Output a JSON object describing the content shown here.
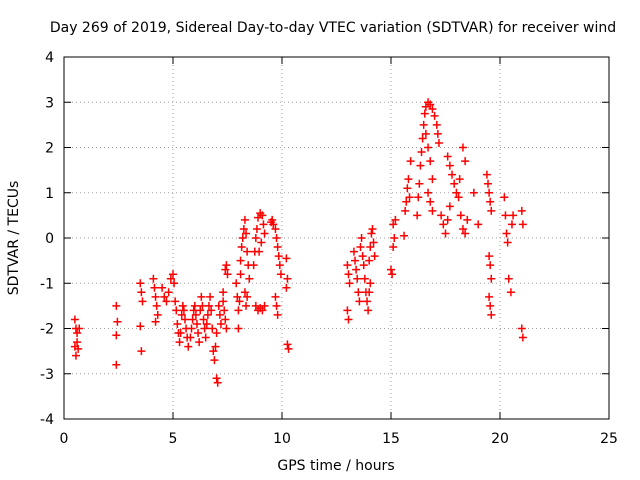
{
  "chart_data": {
    "type": "scatter",
    "title": "Day 269 of 2019, Sidereal Day-to-day VTEC variation (SDTVAR) for receiver wind",
    "xlabel": "GPS time / hours",
    "ylabel": "SDTVAR / TECUs",
    "xlim": [
      0,
      25
    ],
    "ylim": [
      -4,
      4
    ],
    "xticks": [
      0,
      5,
      10,
      15,
      20,
      25
    ],
    "yticks": [
      -4,
      -3,
      -2,
      -1,
      0,
      1,
      2,
      3,
      4
    ],
    "grid": true,
    "marker": "+",
    "marker_color": "#ff0000",
    "series": [
      {
        "name": "SDTVAR",
        "points": [
          [
            0.5,
            -1.8
          ],
          [
            0.55,
            -2.0
          ],
          [
            0.5,
            -2.4
          ],
          [
            0.55,
            -2.6
          ],
          [
            0.6,
            -2.1
          ],
          [
            0.7,
            -2.0
          ],
          [
            0.6,
            -2.3
          ],
          [
            0.65,
            -2.45
          ],
          [
            2.4,
            -1.5
          ],
          [
            2.45,
            -1.85
          ],
          [
            2.4,
            -2.15
          ],
          [
            2.4,
            -2.8
          ],
          [
            3.5,
            -1.0
          ],
          [
            3.55,
            -1.2
          ],
          [
            3.6,
            -1.4
          ],
          [
            3.5,
            -1.95
          ],
          [
            3.55,
            -2.5
          ],
          [
            4.1,
            -0.9
          ],
          [
            4.15,
            -1.1
          ],
          [
            4.2,
            -1.3
          ],
          [
            4.25,
            -1.5
          ],
          [
            4.3,
            -1.7
          ],
          [
            4.2,
            -1.85
          ],
          [
            4.5,
            -1.1
          ],
          [
            4.6,
            -1.3
          ],
          [
            4.7,
            -1.4
          ],
          [
            4.8,
            -1.2
          ],
          [
            4.9,
            -0.9
          ],
          [
            5.0,
            -0.8
          ],
          [
            5.05,
            -1.0
          ],
          [
            5.1,
            -1.4
          ],
          [
            5.15,
            -1.6
          ],
          [
            5.2,
            -1.9
          ],
          [
            5.25,
            -2.1
          ],
          [
            5.3,
            -2.3
          ],
          [
            5.35,
            -2.1
          ],
          [
            5.4,
            -1.7
          ],
          [
            5.45,
            -1.5
          ],
          [
            5.5,
            -1.6
          ],
          [
            5.55,
            -1.8
          ],
          [
            5.6,
            -2.0
          ],
          [
            5.65,
            -2.2
          ],
          [
            5.7,
            -2.4
          ],
          [
            5.8,
            -2.2
          ],
          [
            5.85,
            -2.0
          ],
          [
            5.9,
            -1.8
          ],
          [
            5.95,
            -1.6
          ],
          [
            6.0,
            -1.5
          ],
          [
            6.05,
            -1.7
          ],
          [
            6.1,
            -1.9
          ],
          [
            6.15,
            -2.1
          ],
          [
            6.2,
            -2.3
          ],
          [
            6.25,
            -1.6
          ],
          [
            6.3,
            -1.3
          ],
          [
            6.35,
            -1.5
          ],
          [
            6.4,
            -1.8
          ],
          [
            6.45,
            -2.0
          ],
          [
            6.5,
            -2.2
          ],
          [
            6.55,
            -1.9
          ],
          [
            6.6,
            -1.7
          ],
          [
            6.65,
            -1.5
          ],
          [
            6.7,
            -1.3
          ],
          [
            6.75,
            -1.6
          ],
          [
            6.8,
            -2.0
          ],
          [
            6.85,
            -2.5
          ],
          [
            6.9,
            -2.7
          ],
          [
            6.95,
            -2.4
          ],
          [
            7.0,
            -2.1
          ],
          [
            7.0,
            -3.1
          ],
          [
            7.05,
            -3.2
          ],
          [
            7.1,
            -1.5
          ],
          [
            7.15,
            -1.7
          ],
          [
            7.2,
            -1.9
          ],
          [
            7.3,
            -1.4
          ],
          [
            7.35,
            -1.6
          ],
          [
            7.4,
            -1.8
          ],
          [
            7.45,
            -2.0
          ],
          [
            7.4,
            -0.7
          ],
          [
            7.45,
            -0.6
          ],
          [
            7.5,
            -0.8
          ],
          [
            7.3,
            -1.2
          ],
          [
            7.9,
            -1.0
          ],
          [
            7.95,
            -1.3
          ],
          [
            8.0,
            -1.6
          ],
          [
            8.0,
            -2.0
          ],
          [
            8.05,
            -1.4
          ],
          [
            8.1,
            -0.8
          ],
          [
            8.1,
            -0.5
          ],
          [
            8.15,
            -0.2
          ],
          [
            8.2,
            0.0
          ],
          [
            8.25,
            0.2
          ],
          [
            8.3,
            0.4
          ],
          [
            8.35,
            0.1
          ],
          [
            8.4,
            -0.3
          ],
          [
            8.45,
            -0.6
          ],
          [
            8.5,
            -0.9
          ],
          [
            8.4,
            -1.3
          ],
          [
            8.35,
            -1.5
          ],
          [
            8.3,
            -1.2
          ],
          [
            8.7,
            -0.6
          ],
          [
            8.75,
            -0.3
          ],
          [
            8.8,
            0.0
          ],
          [
            8.85,
            0.2
          ],
          [
            8.9,
            0.45
          ],
          [
            9.0,
            0.55
          ],
          [
            9.1,
            0.5
          ],
          [
            9.15,
            0.3
          ],
          [
            9.2,
            0.1
          ],
          [
            9.05,
            -0.1
          ],
          [
            8.95,
            -0.3
          ],
          [
            8.8,
            -1.5
          ],
          [
            8.9,
            -1.6
          ],
          [
            9.0,
            -1.55
          ],
          [
            9.1,
            -1.6
          ],
          [
            9.2,
            -1.5
          ],
          [
            9.5,
            0.35
          ],
          [
            9.55,
            0.4
          ],
          [
            9.6,
            0.3
          ],
          [
            9.7,
            0.2
          ],
          [
            9.75,
            0.0
          ],
          [
            9.8,
            -0.2
          ],
          [
            9.85,
            -0.4
          ],
          [
            9.9,
            -0.6
          ],
          [
            9.95,
            -0.8
          ],
          [
            9.7,
            -1.3
          ],
          [
            9.75,
            -1.5
          ],
          [
            9.8,
            -1.7
          ],
          [
            10.2,
            -0.45
          ],
          [
            10.25,
            -0.9
          ],
          [
            10.2,
            -1.1
          ],
          [
            10.25,
            -2.35
          ],
          [
            10.3,
            -2.45
          ],
          [
            13.0,
            -0.6
          ],
          [
            13.05,
            -0.8
          ],
          [
            13.1,
            -1.0
          ],
          [
            13.0,
            -1.6
          ],
          [
            13.05,
            -1.8
          ],
          [
            13.3,
            -0.3
          ],
          [
            13.35,
            -0.5
          ],
          [
            13.4,
            -0.7
          ],
          [
            13.45,
            -0.9
          ],
          [
            13.5,
            -1.2
          ],
          [
            13.55,
            -1.4
          ],
          [
            13.6,
            -0.2
          ],
          [
            13.65,
            0.0
          ],
          [
            13.7,
            -0.4
          ],
          [
            13.75,
            -0.6
          ],
          [
            13.8,
            -0.9
          ],
          [
            13.85,
            -1.2
          ],
          [
            13.9,
            -1.4
          ],
          [
            13.95,
            -1.6
          ],
          [
            14.0,
            -1.2
          ],
          [
            14.05,
            -1.0
          ],
          [
            14.0,
            -0.5
          ],
          [
            14.05,
            -0.2
          ],
          [
            14.1,
            0.1
          ],
          [
            14.15,
            0.2
          ],
          [
            14.2,
            -0.1
          ],
          [
            14.25,
            -0.4
          ],
          [
            15.0,
            -0.7
          ],
          [
            15.05,
            -0.8
          ],
          [
            15.1,
            -0.2
          ],
          [
            15.15,
            0.0
          ],
          [
            15.1,
            0.3
          ],
          [
            15.2,
            0.4
          ],
          [
            15.6,
            0.05
          ],
          [
            15.65,
            0.6
          ],
          [
            15.7,
            0.8
          ],
          [
            15.75,
            1.1
          ],
          [
            15.8,
            1.3
          ],
          [
            15.85,
            0.9
          ],
          [
            15.9,
            1.7
          ],
          [
            16.2,
            0.5
          ],
          [
            16.25,
            0.9
          ],
          [
            16.3,
            1.2
          ],
          [
            16.35,
            1.6
          ],
          [
            16.4,
            1.9
          ],
          [
            16.45,
            2.2
          ],
          [
            16.5,
            2.5
          ],
          [
            16.55,
            2.75
          ],
          [
            16.6,
            2.9
          ],
          [
            16.7,
            3.0
          ],
          [
            16.8,
            2.95
          ],
          [
            16.9,
            2.85
          ],
          [
            17.0,
            2.7
          ],
          [
            17.1,
            2.5
          ],
          [
            17.15,
            2.3
          ],
          [
            17.2,
            2.1
          ],
          [
            16.6,
            2.3
          ],
          [
            16.7,
            2.0
          ],
          [
            16.8,
            1.7
          ],
          [
            16.9,
            1.3
          ],
          [
            16.7,
            1.0
          ],
          [
            16.8,
            0.8
          ],
          [
            16.9,
            0.6
          ],
          [
            17.3,
            0.5
          ],
          [
            17.4,
            0.3
          ],
          [
            17.5,
            0.1
          ],
          [
            17.6,
            0.4
          ],
          [
            17.7,
            0.7
          ],
          [
            17.6,
            1.8
          ],
          [
            17.7,
            1.6
          ],
          [
            17.8,
            1.4
          ],
          [
            17.9,
            1.2
          ],
          [
            18.0,
            1.0
          ],
          [
            18.1,
            0.9
          ],
          [
            18.15,
            1.3
          ],
          [
            18.2,
            0.5
          ],
          [
            18.3,
            0.2
          ],
          [
            18.4,
            0.1
          ],
          [
            18.5,
            0.4
          ],
          [
            18.3,
            2.0
          ],
          [
            18.4,
            1.7
          ],
          [
            18.8,
            1.0
          ],
          [
            19.0,
            0.3
          ],
          [
            19.4,
            1.4
          ],
          [
            19.45,
            1.2
          ],
          [
            19.5,
            1.0
          ],
          [
            19.55,
            0.8
          ],
          [
            19.6,
            0.6
          ],
          [
            19.5,
            -0.4
          ],
          [
            19.55,
            -0.6
          ],
          [
            19.6,
            -0.9
          ],
          [
            19.5,
            -1.3
          ],
          [
            19.55,
            -1.5
          ],
          [
            19.6,
            -1.7
          ],
          [
            20.2,
            0.9
          ],
          [
            20.25,
            0.5
          ],
          [
            20.3,
            0.1
          ],
          [
            20.35,
            -0.1
          ],
          [
            20.4,
            -0.9
          ],
          [
            20.5,
            -1.2
          ],
          [
            20.6,
            0.5
          ],
          [
            20.55,
            0.3
          ],
          [
            21.0,
            0.6
          ],
          [
            21.05,
            0.3
          ],
          [
            21.0,
            -2.0
          ],
          [
            21.05,
            -2.2
          ]
        ]
      }
    ]
  }
}
